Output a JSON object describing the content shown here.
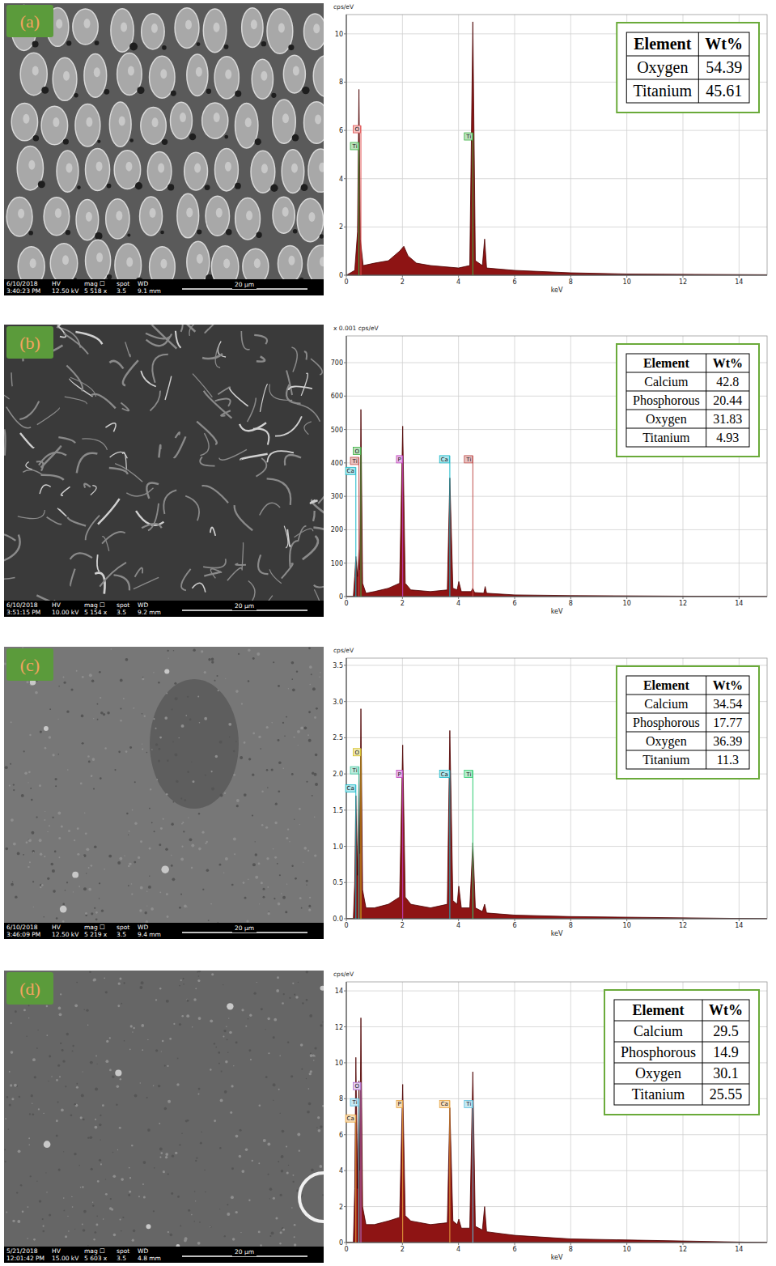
{
  "chart_data": [
    {
      "type": "area",
      "panel_label": "(a)",
      "y_label": "cps/eV",
      "x_label": "keV",
      "color": "#8e1414",
      "grid": true,
      "x": [
        0,
        0.3,
        0.4,
        0.45,
        0.5,
        0.6,
        1.0,
        1.5,
        1.9,
        2.05,
        2.2,
        2.5,
        3.0,
        4.0,
        4.4,
        4.51,
        4.6,
        4.85,
        4.93,
        5.0,
        6.0,
        8.0,
        10.0,
        15.0
      ],
      "values": [
        0,
        0.2,
        1.8,
        7.7,
        1.5,
        0.4,
        0.5,
        0.6,
        1.0,
        1.2,
        0.8,
        0.5,
        0.4,
        0.3,
        0.4,
        10.5,
        0.6,
        0.4,
        1.5,
        0.3,
        0.2,
        0.1,
        0.05,
        0.02
      ],
      "xlim": [
        0,
        15
      ],
      "xticks": [
        0,
        2,
        4,
        6,
        8,
        10,
        12,
        14
      ],
      "ylim": [
        0,
        10.8
      ],
      "yticks": [
        0,
        2,
        4,
        6,
        8,
        10
      ],
      "peak_labels": [
        {
          "label": "Ti",
          "x": 0.45,
          "y": 5.2,
          "color": "#3cb043"
        },
        {
          "label": "O",
          "x": 0.52,
          "y": 5.9,
          "color": "#e05050"
        },
        {
          "label": "Ti",
          "x": 4.51,
          "y": 5.6,
          "color": "#3cb043"
        }
      ],
      "table": {
        "header": [
          "Element",
          "Wt%"
        ],
        "rows": [
          [
            "Oxygen",
            54.39
          ],
          [
            "Titanium",
            45.61
          ]
        ]
      },
      "sem_info": {
        "header": [
          "HV",
          "mag ☐",
          "spot",
          "WD"
        ],
        "values": [
          "6/10/2018",
          "3:40:23 PM",
          "12.50 kV",
          "5 518 x",
          "3.5",
          "9.1 mm"
        ],
        "scale": "20 μm"
      }
    },
    {
      "type": "area",
      "panel_label": "(b)",
      "y_label": "x 0.001 cps/eV",
      "x_label": "keV",
      "color": "#8e1414",
      "grid": true,
      "x": [
        0,
        0.25,
        0.3,
        0.34,
        0.4,
        0.45,
        0.48,
        0.52,
        0.58,
        0.7,
        1.0,
        1.5,
        1.9,
        2.01,
        2.1,
        2.3,
        3.0,
        3.6,
        3.69,
        3.8,
        3.95,
        4.01,
        4.1,
        4.45,
        4.51,
        4.57,
        4.9,
        4.95,
        5.0,
        6.0,
        8.0,
        15.0
      ],
      "values": [
        0,
        0,
        60,
        120,
        60,
        140,
        80,
        560,
        40,
        10,
        15,
        25,
        40,
        510,
        40,
        20,
        15,
        20,
        355,
        25,
        20,
        45,
        15,
        15,
        25,
        12,
        10,
        30,
        10,
        5,
        3,
        0
      ],
      "xlim": [
        0,
        15
      ],
      "xticks": [
        0,
        2,
        4,
        6,
        8,
        10,
        12,
        14
      ],
      "ylim": [
        0,
        780
      ],
      "yticks": [
        0,
        100,
        200,
        300,
        400,
        500,
        600,
        700
      ],
      "peak_labels": [
        {
          "label": "Ca",
          "x": 0.34,
          "y": 365,
          "color": "#17b8c8"
        },
        {
          "label": "Ti",
          "x": 0.45,
          "y": 395,
          "color": "#c0504d"
        },
        {
          "label": "O",
          "x": 0.52,
          "y": 425,
          "color": "#3cb043"
        },
        {
          "label": "P",
          "x": 2.01,
          "y": 400,
          "color": "#c040c0"
        },
        {
          "label": "Ca",
          "x": 3.69,
          "y": 400,
          "color": "#17b8c8"
        },
        {
          "label": "Ti",
          "x": 4.51,
          "y": 400,
          "color": "#c0504d"
        }
      ],
      "table": {
        "header": [
          "Element",
          "Wt%"
        ],
        "rows": [
          [
            "Calcium",
            42.8
          ],
          [
            "Phosphorous",
            20.44
          ],
          [
            "Oxygen",
            31.83
          ],
          [
            "Titanium",
            4.93
          ]
        ]
      },
      "sem_info": {
        "header": [
          "HV",
          "mag ☐",
          "spot",
          "WD"
        ],
        "values": [
          "6/10/2018",
          "3:51:15 PM",
          "10.00 kV",
          "5 154 x",
          "3.5",
          "9.2 mm"
        ],
        "scale": "20 μm"
      }
    },
    {
      "type": "area",
      "panel_label": "(c)",
      "y_label": "cps/eV",
      "x_label": "keV",
      "color": "#8e1414",
      "grid": true,
      "x": [
        0,
        0.25,
        0.3,
        0.34,
        0.4,
        0.45,
        0.48,
        0.52,
        0.58,
        0.7,
        1.0,
        1.5,
        1.9,
        2.01,
        2.1,
        2.3,
        3.0,
        3.6,
        3.69,
        3.8,
        3.95,
        4.01,
        4.1,
        4.4,
        4.51,
        4.6,
        4.85,
        4.93,
        5.0,
        6.0,
        8.0,
        15.0
      ],
      "values": [
        0,
        0,
        0.5,
        1.7,
        0.6,
        2.0,
        0.9,
        2.9,
        0.4,
        0.15,
        0.15,
        0.2,
        0.3,
        2.4,
        0.3,
        0.2,
        0.15,
        0.2,
        2.6,
        0.25,
        0.2,
        0.45,
        0.15,
        0.15,
        1.05,
        0.15,
        0.1,
        0.2,
        0.08,
        0.05,
        0.03,
        0
      ],
      "xlim": [
        0,
        15
      ],
      "xticks": [
        0,
        2,
        4,
        6,
        8,
        10,
        12,
        14
      ],
      "ylim": [
        0,
        3.6
      ],
      "yticks": [
        {
          "value": 0,
          "label": "0.0"
        },
        0.5,
        {
          "value": 1,
          "label": "1.0"
        },
        1.5,
        {
          "value": 2,
          "label": "2.0"
        },
        2.5,
        {
          "value": 3,
          "label": "3.0"
        },
        3.5
      ],
      "peak_labels": [
        {
          "label": "Ca",
          "x": 0.34,
          "y": 1.75,
          "color": "#17b8c8"
        },
        {
          "label": "Ti",
          "x": 0.45,
          "y": 2.0,
          "color": "#40c8a0"
        },
        {
          "label": "O",
          "x": 0.52,
          "y": 2.25,
          "color": "#d4c020"
        },
        {
          "label": "P",
          "x": 2.01,
          "y": 1.95,
          "color": "#c040c0"
        },
        {
          "label": "Ca",
          "x": 3.69,
          "y": 1.95,
          "color": "#17b8c8"
        },
        {
          "label": "Ti",
          "x": 4.51,
          "y": 1.95,
          "color": "#2ecc71"
        }
      ],
      "table": {
        "header": [
          "Element",
          "Wt%"
        ],
        "rows": [
          [
            "Calcium",
            34.54
          ],
          [
            "Phosphorous",
            17.77
          ],
          [
            "Oxygen",
            36.39
          ],
          [
            "Titanium",
            11.3
          ]
        ]
      },
      "sem_info": {
        "header": [
          "HV",
          "mag ☐",
          "spot",
          "WD"
        ],
        "values": [
          "6/10/2018",
          "3:46:09 PM",
          "12.50 kV",
          "5 219 x",
          "3.5",
          "9.4 mm"
        ],
        "scale": "20 μm"
      }
    },
    {
      "type": "area",
      "panel_label": "(d)",
      "y_label": "cps/eV",
      "x_label": "keV",
      "color": "#8e1414",
      "grid": true,
      "x": [
        0,
        0.25,
        0.3,
        0.34,
        0.4,
        0.45,
        0.48,
        0.52,
        0.58,
        0.7,
        1.0,
        1.5,
        1.9,
        2.01,
        2.1,
        2.3,
        3.0,
        3.6,
        3.69,
        3.8,
        3.95,
        4.01,
        4.1,
        4.4,
        4.51,
        4.6,
        4.85,
        4.93,
        5.0,
        6.0,
        8.0,
        15.0
      ],
      "values": [
        0,
        0,
        3,
        10.3,
        3,
        9.0,
        4,
        12.5,
        2,
        1.0,
        1.0,
        1.2,
        1.4,
        8.8,
        1.5,
        1.2,
        1.0,
        1.1,
        7.5,
        1.2,
        1.0,
        1.3,
        0.8,
        0.8,
        9.5,
        0.9,
        0.7,
        2.0,
        0.6,
        0.4,
        0.2,
        0
      ],
      "xlim": [
        0,
        15
      ],
      "xticks": [
        0,
        2,
        4,
        6,
        8,
        10,
        12,
        14
      ],
      "ylim": [
        0,
        14.5
      ],
      "yticks": [
        0,
        2,
        4,
        6,
        8,
        10,
        12,
        14
      ],
      "peak_labels": [
        {
          "label": "Ca",
          "x": 0.34,
          "y": 6.7,
          "color": "#e8a33d"
        },
        {
          "label": "Ti",
          "x": 0.45,
          "y": 7.6,
          "color": "#5bc0de"
        },
        {
          "label": "O",
          "x": 0.52,
          "y": 8.5,
          "color": "#b070d0"
        },
        {
          "label": "P",
          "x": 2.01,
          "y": 7.5,
          "color": "#e8a33d"
        },
        {
          "label": "Ca",
          "x": 3.69,
          "y": 7.5,
          "color": "#e8a33d"
        },
        {
          "label": "Ti",
          "x": 4.51,
          "y": 7.5,
          "color": "#5bc0de"
        }
      ],
      "table": {
        "header": [
          "Element",
          "Wt%"
        ],
        "rows": [
          [
            "Calcium",
            29.5
          ],
          [
            "Phosphorous",
            14.9
          ],
          [
            "Oxygen",
            30.1
          ],
          [
            "Titanium",
            25.55
          ]
        ]
      },
      "sem_info": {
        "header": [
          "HV",
          "mag ☐",
          "spot",
          "WD"
        ],
        "values": [
          "5/21/2018",
          "12:01:42 PM",
          "15.00 kV",
          "5 603 x",
          "3.5",
          "4.8 mm"
        ],
        "scale": "20 μm"
      }
    }
  ]
}
